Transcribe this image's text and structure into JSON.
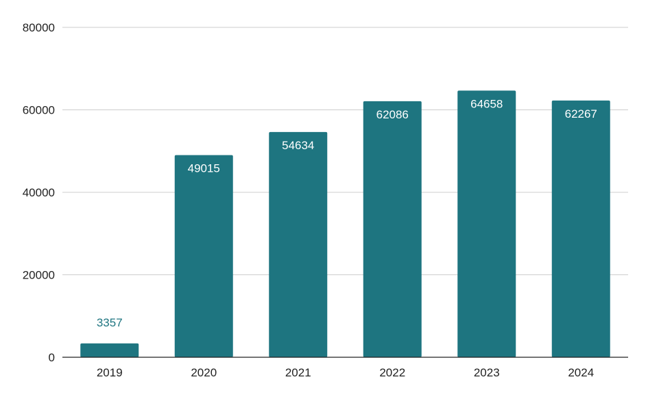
{
  "chart_data": {
    "type": "bar",
    "categories": [
      "2019",
      "2020",
      "2021",
      "2022",
      "2023",
      "2024"
    ],
    "values": [
      3357,
      49015,
      54634,
      62086,
      64658,
      62267
    ],
    "title": "",
    "xlabel": "",
    "ylabel": "",
    "ylim": [
      0,
      80000
    ],
    "yticks": [
      0,
      20000,
      40000,
      60000,
      80000
    ],
    "grid": true,
    "legend": "none",
    "bar_color": "#1e7580",
    "grid_color": "#cccccc",
    "axis_color": "#222222",
    "data_labels": true
  }
}
